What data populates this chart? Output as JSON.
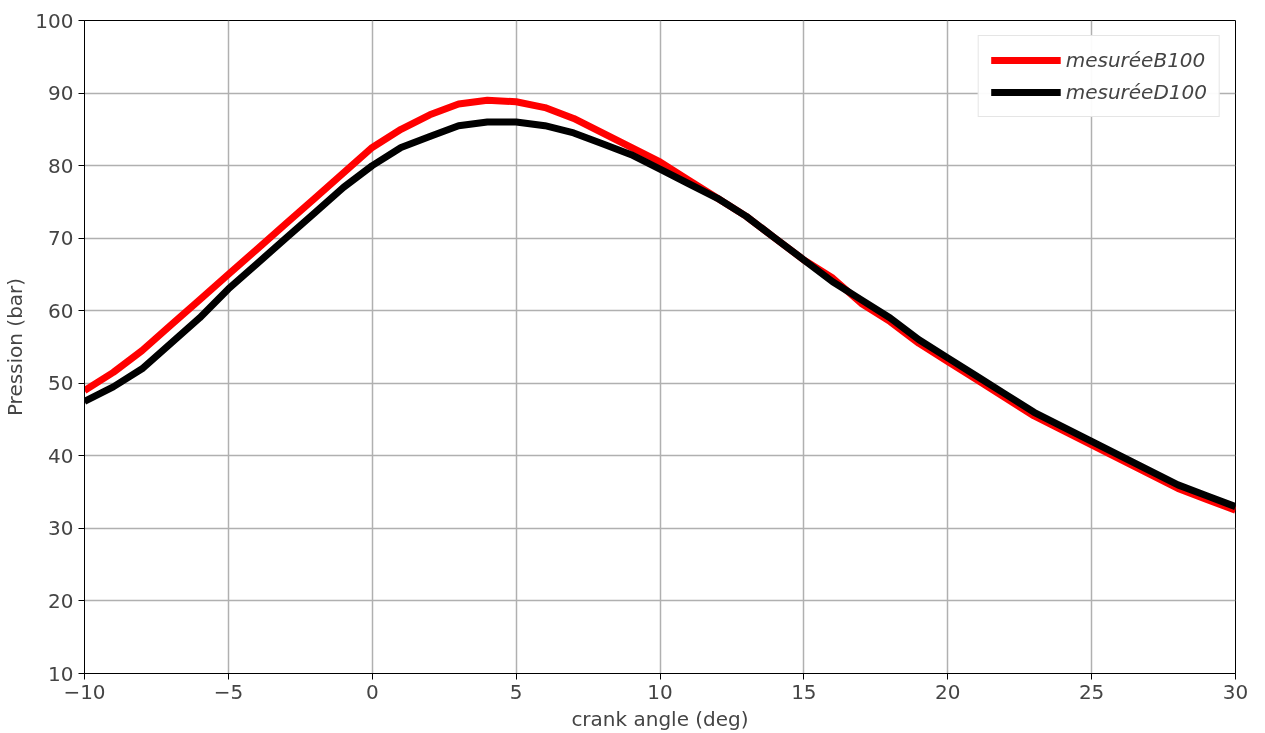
{
  "chart_data": {
    "type": "line",
    "xlabel": "crank angle (deg)",
    "ylabel": "Pression (bar)",
    "x": [
      -10,
      -9,
      -8,
      -7,
      -6,
      -5,
      -4,
      -3,
      -2,
      -1,
      0,
      1,
      2,
      3,
      4,
      5,
      6,
      7,
      8,
      9,
      10,
      11,
      12,
      13,
      14,
      15,
      16,
      17,
      18,
      19,
      20,
      21,
      22,
      23,
      24,
      25,
      26,
      27,
      28,
      29,
      30
    ],
    "series": [
      {
        "name": "mesuréeB100",
        "color": "#ff0000",
        "values": [
          49,
          51.5,
          54.5,
          58,
          61.5,
          65,
          68.5,
          72,
          75.5,
          79,
          82.5,
          85,
          87,
          88.5,
          89,
          88.8,
          88,
          86.5,
          84.5,
          82.5,
          80.5,
          78,
          75.5,
          73,
          70,
          67,
          64.5,
          61,
          58.5,
          55.5,
          53,
          50.5,
          48,
          45.5,
          43.5,
          41.5,
          39.5,
          37.5,
          35.5,
          34,
          32.5
        ]
      },
      {
        "name": "mesuréeD100",
        "color": "#000000",
        "values": [
          47.5,
          49.5,
          52,
          55.5,
          59,
          63,
          66.5,
          70,
          73.5,
          77,
          80,
          82.5,
          84,
          85.5,
          86,
          86,
          85.5,
          84.5,
          83,
          81.5,
          79.5,
          77.5,
          75.5,
          73,
          70,
          67,
          64,
          61.5,
          59,
          56,
          53.5,
          51,
          48.5,
          46,
          44,
          42,
          40,
          38,
          36,
          34.5,
          33
        ]
      }
    ],
    "xlim": [
      -10,
      30
    ],
    "xticks": [
      {
        "value": -10,
        "label": "−10"
      },
      {
        "value": -5,
        "label": "−5"
      },
      0,
      5,
      10,
      15,
      20,
      25,
      30
    ],
    "ylim": [
      10,
      100
    ],
    "yticks": [
      10,
      20,
      30,
      40,
      50,
      60,
      70,
      80,
      90,
      100
    ],
    "grid": true,
    "legend": "top right",
    "line_style": "solid",
    "marker": "none"
  }
}
